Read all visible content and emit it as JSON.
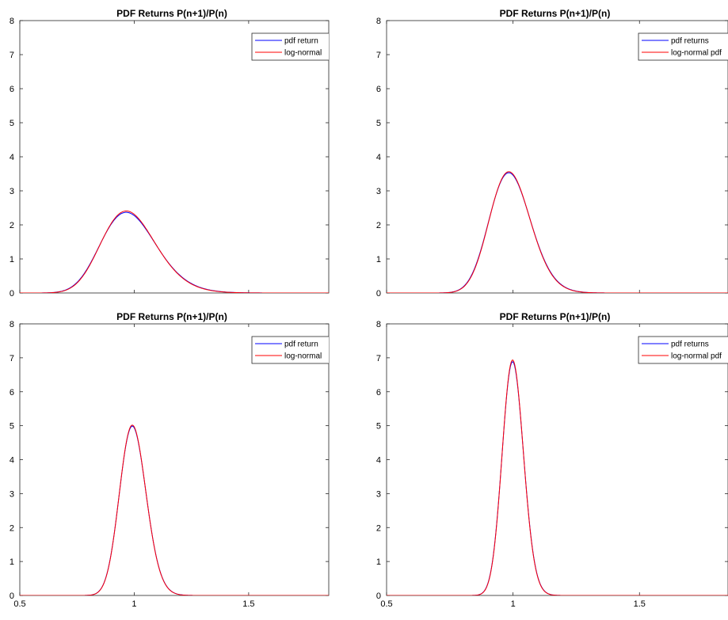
{
  "chart_data": [
    {
      "type": "line",
      "title": "PDF Returns P(n+1)/P(n)",
      "xlim": [
        0.5,
        1.85
      ],
      "ylim": [
        0,
        8
      ],
      "xticks": [],
      "yticks": [
        "0",
        "1",
        "2",
        "3",
        "4",
        "5",
        "6",
        "7",
        "8"
      ],
      "legend_position": "top-right",
      "series": [
        {
          "name": "pdf return",
          "color": "#0000ff",
          "kind": "lognormal",
          "mode": 0.98,
          "peak": 2.35,
          "sigma": 0.125
        },
        {
          "name": "log-normal",
          "color": "#ff0000",
          "kind": "lognormal",
          "mode": 0.98,
          "peak": 2.39,
          "sigma": 0.123
        }
      ]
    },
    {
      "type": "line",
      "title": "PDF Returns P(n+1)/P(n)",
      "xlim": [
        0.5,
        1.85
      ],
      "ylim": [
        0,
        8
      ],
      "xticks": [],
      "yticks": [
        "0",
        "1",
        "2",
        "3",
        "4",
        "5",
        "6",
        "7",
        "8"
      ],
      "legend_position": "top-right",
      "series": [
        {
          "name": "pdf returns",
          "color": "#0000ff",
          "kind": "lognormal",
          "mode": 0.99,
          "peak": 3.52,
          "sigma": 0.083
        },
        {
          "name": "log-normal pdf",
          "color": "#ff0000",
          "kind": "lognormal",
          "mode": 0.99,
          "peak": 3.55,
          "sigma": 0.082
        }
      ]
    },
    {
      "type": "line",
      "title": "PDF Returns P(n+1)/P(n)",
      "xlim": [
        0.5,
        1.85
      ],
      "ylim": [
        0,
        8
      ],
      "xticks": [
        "0.5",
        "1",
        "1.5"
      ],
      "xtick_values": [
        0.5,
        1,
        1.5
      ],
      "yticks": [
        "0",
        "1",
        "2",
        "3",
        "4",
        "5",
        "6",
        "7",
        "8"
      ],
      "legend_position": "top-right",
      "series": [
        {
          "name": "pdf return",
          "color": "#0000ff",
          "kind": "lognormal",
          "mode": 0.995,
          "peak": 4.98,
          "sigma": 0.0585
        },
        {
          "name": "log-normal",
          "color": "#ff0000",
          "kind": "lognormal",
          "mode": 0.995,
          "peak": 5.01,
          "sigma": 0.0582
        }
      ]
    },
    {
      "type": "line",
      "title": "PDF Returns P(n+1)/P(n)",
      "xlim": [
        0.5,
        1.85
      ],
      "ylim": [
        0,
        8
      ],
      "xticks": [
        "0.5",
        "1",
        "1.5"
      ],
      "xtick_values": [
        0.5,
        1,
        1.5
      ],
      "yticks": [
        "0",
        "1",
        "2",
        "3",
        "4",
        "5",
        "6",
        "7",
        "8"
      ],
      "legend_position": "top-right",
      "series": [
        {
          "name": "pdf returns",
          "color": "#0000ff",
          "kind": "lognormal",
          "mode": 1.0,
          "peak": 6.88,
          "sigma": 0.0423
        },
        {
          "name": "log-normal pdf",
          "color": "#ff0000",
          "kind": "lognormal",
          "mode": 1.0,
          "peak": 6.93,
          "sigma": 0.042
        }
      ]
    }
  ]
}
